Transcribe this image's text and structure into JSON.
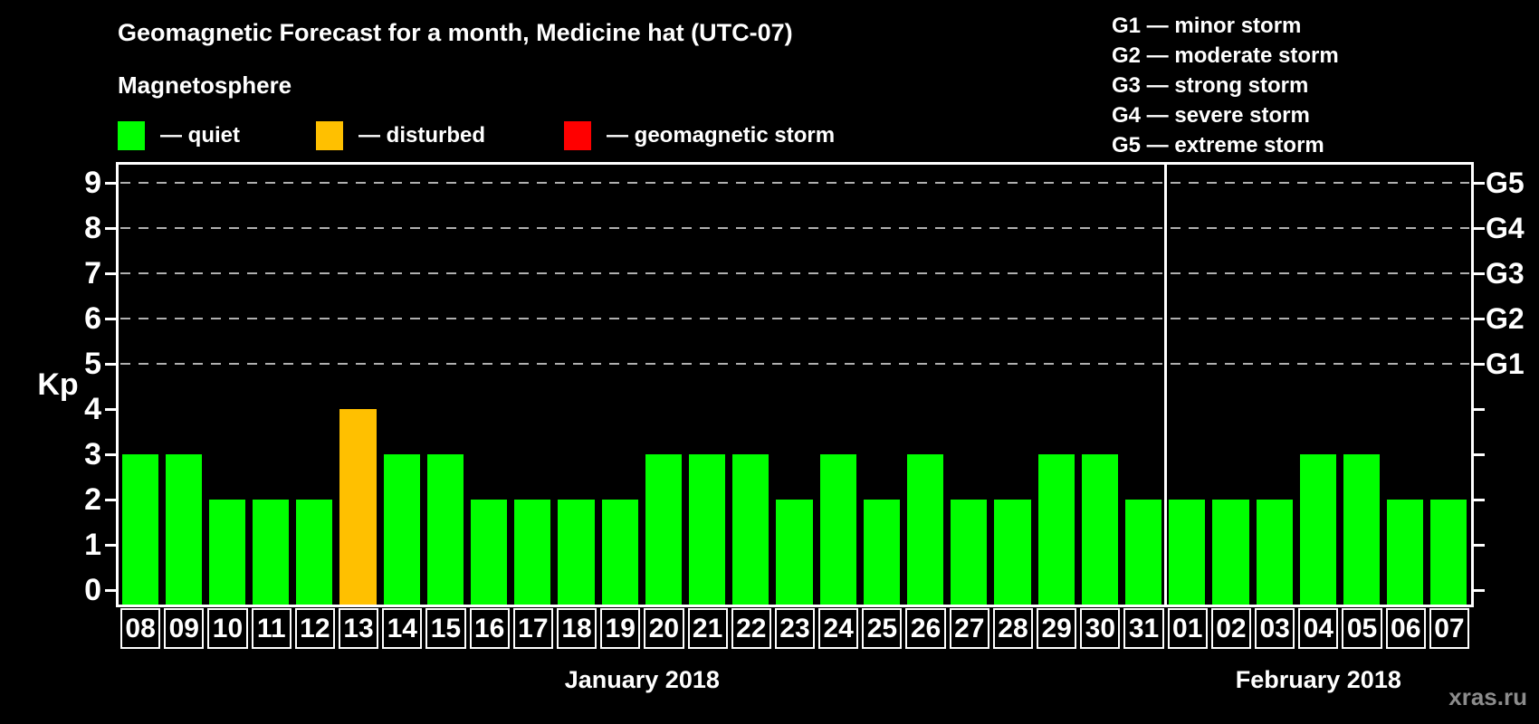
{
  "title": "Geomagnetic Forecast for a month, Medicine hat (UTC-07)",
  "watermark": "xras.ru",
  "legend": {
    "title": "Magnetosphere",
    "items": [
      {
        "state": "quiet",
        "label": "— quiet",
        "color": "#00ff00"
      },
      {
        "state": "disturbed",
        "label": "— disturbed",
        "color": "#ffc000"
      },
      {
        "state": "storm",
        "label": "— geomagnetic storm",
        "color": "#ff0000"
      }
    ]
  },
  "g_legend": {
    "items": [
      "G1 — minor storm",
      "G2 — moderate storm",
      "G3 — strong storm",
      "G4 — severe storm",
      "G5 — extreme storm"
    ]
  },
  "chart_data": {
    "type": "bar",
    "title": "Geomagnetic Forecast for a month, Medicine hat (UTC-07)",
    "ylabel": "Kp",
    "ylim": [
      0,
      9.6
    ],
    "yticks": [
      0,
      1,
      2,
      3,
      4,
      5,
      6,
      7,
      8,
      9
    ],
    "grid_levels": [
      5,
      6,
      7,
      8,
      9
    ],
    "grid_on": true,
    "right_axis": [
      {
        "label": "G1",
        "kp": 5
      },
      {
        "label": "G2",
        "kp": 6
      },
      {
        "label": "G3",
        "kp": 7
      },
      {
        "label": "G4",
        "kp": 8
      },
      {
        "label": "G5",
        "kp": 9
      }
    ],
    "categories": [
      "08",
      "09",
      "10",
      "11",
      "12",
      "13",
      "14",
      "15",
      "16",
      "17",
      "18",
      "19",
      "20",
      "21",
      "22",
      "23",
      "24",
      "25",
      "26",
      "27",
      "28",
      "29",
      "30",
      "31",
      "01",
      "02",
      "03",
      "04",
      "05",
      "06",
      "07"
    ],
    "values": [
      3,
      3,
      2,
      2,
      2,
      4,
      3,
      3,
      2,
      2,
      2,
      2,
      3,
      3,
      3,
      2,
      3,
      2,
      3,
      2,
      2,
      3,
      3,
      2,
      2,
      2,
      2,
      3,
      3,
      2,
      2
    ],
    "states": [
      "quiet",
      "quiet",
      "quiet",
      "quiet",
      "quiet",
      "disturbed",
      "quiet",
      "quiet",
      "quiet",
      "quiet",
      "quiet",
      "quiet",
      "quiet",
      "quiet",
      "quiet",
      "quiet",
      "quiet",
      "quiet",
      "quiet",
      "quiet",
      "quiet",
      "quiet",
      "quiet",
      "quiet",
      "quiet",
      "quiet",
      "quiet",
      "quiet",
      "quiet",
      "quiet",
      "quiet"
    ],
    "state_colors": {
      "quiet": "#00ff00",
      "disturbed": "#ffc000",
      "storm": "#ff0000"
    },
    "months": [
      {
        "label": "January 2018",
        "days": 24
      },
      {
        "label": "February 2018",
        "days": 7
      }
    ],
    "month_separator_after_index": 23
  }
}
